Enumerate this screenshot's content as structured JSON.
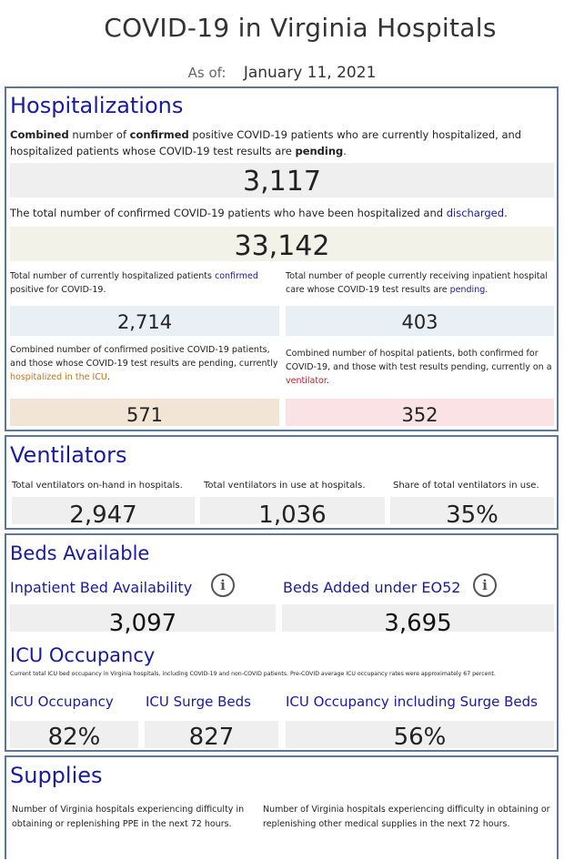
{
  "page": {
    "title": "COVID-19 in Virginia Hospitals",
    "asof_label": "As of:",
    "asof_date": "January 11, 2021"
  },
  "hospitalizations": {
    "title": "Hospitalizations",
    "desc1_parts": [
      "Combined",
      " number of ",
      "confirmed",
      " positive COVID-19 patients who are currently hospitalized, and hospitalized patients whose COVID-19 test results are ",
      "pending",
      "."
    ],
    "value1": "3,117",
    "desc2_text": "The total number of confirmed COVID-19 patients who have been hospitalized and ",
    "desc2_link": "discharged",
    "desc2_end": ".",
    "value2": "33,142",
    "confirmed_desc_a": "Total number of currently hospitalized patients ",
    "confirmed_desc_link": "confirmed",
    "confirmed_desc_b": " positive for COVID-19.",
    "confirmed_value": "2,714",
    "pending_desc_a": "Total number of people currently receiving inpatient hospital care whose COVID-19 test results are ",
    "pending_desc_link": "pending",
    "pending_desc_b": ".",
    "pending_value": "403",
    "icu_desc_a": "Combined number of confirmed positive COVID-19 patients, and those whose COVID-19 test results are pending, currently ",
    "icu_desc_link": "hospitalized in the ICU",
    "icu_desc_b": ".",
    "icu_value": "571",
    "vent_desc_a": "Combined number of hospital patients, both confirmed for COVID-19, and those with test results pending, currently on a ",
    "vent_desc_link": "ventilator",
    "vent_desc_b": ".",
    "vent_value": "352"
  },
  "ventilators": {
    "title": "Ventilators",
    "onhand_label": "Total ventilators on-hand in hospitals.",
    "onhand_value": "2,947",
    "inuse_label": "Total ventilators in use at hospitals.",
    "inuse_value": "1,036",
    "share_label": "Share of total ventilators in use.",
    "share_value": "35%"
  },
  "beds": {
    "title": "Beds Available",
    "inpatient_label": "Inpatient Bed Availability",
    "inpatient_value": "3,097",
    "eo52_label": "Beds Added under EO52",
    "eo52_value": "3,695",
    "icu_title": "ICU Occupancy",
    "icu_note": "Current total ICU bed occupancy in Virginia hospitals, including COVID-19 and non-COVID patients. Pre-COVID average ICU occupancy rates were approximately 67 percent.",
    "icu_occ_label": "ICU Occupancy",
    "icu_occ_value": "82%",
    "icu_surge_label": "ICU Surge Beds",
    "icu_surge_value": "827",
    "icu_incl_label": "ICU Occupancy including Surge Beds",
    "icu_incl_value": "56%",
    "info_glyph": "i"
  },
  "supplies": {
    "title": "Supplies",
    "ppe_desc": "Number of Virginia hospitals experiencing difficulty in obtaining or replenishing PPE in the next 72 hours.",
    "other_desc": "Number of Virginia hospitals experiencing difficulty in obtaining or replenishing other medical supplies in the next 72 hours."
  },
  "colors": {
    "panel_border": "#5d7890",
    "title_blue": "#1a1aa0",
    "grey_box": "#efefef",
    "beige_box": "#f3f2e9",
    "light_blue_box": "#e8f0f6",
    "tan_box": "#f3e5d6",
    "pink_box": "#fbe3e5"
  }
}
